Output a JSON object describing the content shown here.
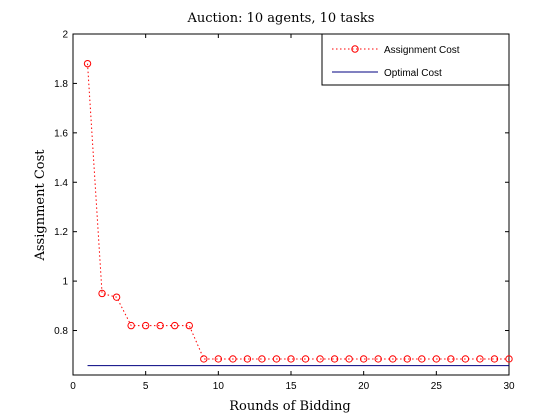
{
  "chart_data": {
    "type": "line",
    "title": "Auction: 10 agents, 10 tasks",
    "xlabel": "Rounds of Bidding",
    "ylabel": "Assignment Cost",
    "xlim": [
      0,
      30
    ],
    "ylim": [
      0.62,
      2
    ],
    "xticks": [
      "0",
      "5",
      "10",
      "15",
      "20",
      "25",
      "30"
    ],
    "yticks": [
      "0.8",
      "1",
      "1.2",
      "1.4",
      "1.6",
      "1.8",
      "2"
    ],
    "grid": false,
    "legend_position": "top-right",
    "series": [
      {
        "name": "Assignment Cost",
        "color": "#ff0000",
        "style": "dotted-circle-markers",
        "x": [
          1,
          2,
          3,
          4,
          5,
          6,
          7,
          8,
          9,
          10,
          11,
          12,
          13,
          14,
          15,
          16,
          17,
          18,
          19,
          20,
          21,
          22,
          23,
          24,
          25,
          26,
          27,
          28,
          29,
          30
        ],
        "y": [
          1.88,
          0.95,
          0.935,
          0.82,
          0.82,
          0.82,
          0.82,
          0.82,
          0.685,
          0.685,
          0.685,
          0.685,
          0.685,
          0.685,
          0.685,
          0.685,
          0.685,
          0.685,
          0.685,
          0.685,
          0.685,
          0.685,
          0.685,
          0.685,
          0.685,
          0.685,
          0.685,
          0.685,
          0.685,
          0.685
        ]
      },
      {
        "name": "Optimal Cost",
        "color": "#000080",
        "style": "solid",
        "x": [
          1,
          30
        ],
        "y": [
          0.658,
          0.658
        ]
      }
    ]
  }
}
